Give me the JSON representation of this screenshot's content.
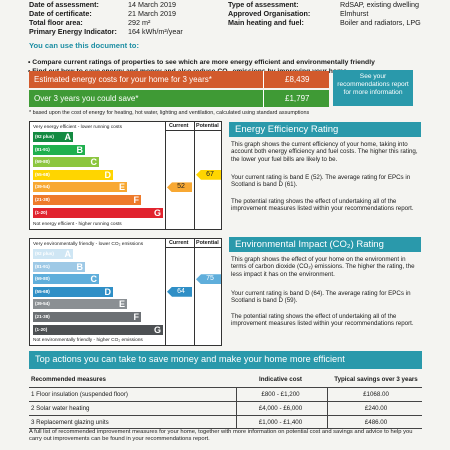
{
  "info": {
    "left": [
      {
        "label": "Date of assessment:",
        "value": "14 March 2019"
      },
      {
        "label": "Date of certificate:",
        "value": "21 March 2019"
      },
      {
        "label": "Total floor area:",
        "value": "292 m²"
      },
      {
        "label": "Primary Energy Indicator:",
        "value": "164 kWh/m²/year"
      }
    ],
    "right": [
      {
        "label": "Type of assessment:",
        "value": "RdSAP, existing dwelling"
      },
      {
        "label": "Approved Organisation:",
        "value": "Elmhurst"
      },
      {
        "label": "Main heating and fuel:",
        "value": "Boiler and radiators, LPG"
      }
    ]
  },
  "intro": {
    "heading": "You can use this document to:",
    "bullets": [
      "Compare current ratings of properties to see which are more energy efficient and environmentally friendly",
      "Find out how to save energy and money and also reduce CO₂ emissions by improving your home"
    ]
  },
  "costs": {
    "estimated_label": "Estimated energy costs for your home for 3 years*",
    "estimated_value": "£8,439",
    "save_label": "Over 3 years you could save*",
    "save_value": "£1,797",
    "see_box": "See your recommendations report for more information",
    "footnote": "* based upon the cost of energy for heating, hot water, lighting and ventilation, calculated using standard assumptions"
  },
  "ee_chart": {
    "top_label": "Very energy efficient - lower running costs",
    "bottom_label": "Not energy efficient - higher running costs",
    "col_current": "Current",
    "col_potential": "Potential",
    "bands": [
      {
        "range": "(92 plus)",
        "letter": "A",
        "color": "#138a41"
      },
      {
        "range": "(81-91)",
        "letter": "B",
        "color": "#1fb04e"
      },
      {
        "range": "(69-80)",
        "letter": "C",
        "color": "#8cc63f"
      },
      {
        "range": "(55-68)",
        "letter": "D",
        "color": "#ffd500"
      },
      {
        "range": "(39-54)",
        "letter": "E",
        "color": "#f8a832"
      },
      {
        "range": "(21-38)",
        "letter": "F",
        "color": "#ee7a2b"
      },
      {
        "range": "(1-20)",
        "letter": "G",
        "color": "#e1232e"
      }
    ],
    "current": "52",
    "potential": "67"
  },
  "ei_chart": {
    "top_label": "Very environmentally friendly - lower CO₂ emissions",
    "bottom_label": "Not environmentally friendly - higher CO₂ emissions",
    "col_current": "Current",
    "col_potential": "Potential",
    "bands": [
      {
        "range": "(92 plus)",
        "letter": "A",
        "color": "#cfe6f4"
      },
      {
        "range": "(81-91)",
        "letter": "B",
        "color": "#9ec9e6"
      },
      {
        "range": "(69-80)",
        "letter": "C",
        "color": "#5faedb"
      },
      {
        "range": "(55-68)",
        "letter": "D",
        "color": "#2f8fc6"
      },
      {
        "range": "(39-54)",
        "letter": "E",
        "color": "#8a8f93"
      },
      {
        "range": "(21-38)",
        "letter": "F",
        "color": "#6c7074"
      },
      {
        "range": "(1-20)",
        "letter": "G",
        "color": "#4d5053"
      }
    ],
    "current": "64",
    "potential": "75"
  },
  "ee_section": {
    "title": "Energy Efficiency Rating",
    "p1": "This graph shows the current efficiency of your home, taking into account both energy efficiency and fuel costs. The higher this rating, the lower your fuel bills are likely to be.",
    "p2": "Your current rating is band E (52). The average rating for EPCs in Scotland is band D (61).",
    "p3": "The potential rating shows the effect of undertaking all of the improvement measures listed within your recommendations report."
  },
  "ei_section": {
    "title": "Environmental Impact (CO₂) Rating",
    "p1": "This graph shows the effect of your home on the environment in terms of carbon dioxide (CO₂) emissions. The higher the rating, the less impact it has on the environment.",
    "p2": "Your current rating is band D (64). The average rating for EPCs in Scotland is band D (59).",
    "p3": "The potential rating shows the effect of undertaking all of the improvement measures listed within your recommendations report."
  },
  "actions": {
    "banner": "Top actions you can take to save money and make your home more efficient",
    "headers": [
      "Recommended measures",
      "Indicative cost",
      "Typical savings over 3 years"
    ],
    "rows": [
      [
        "1 Floor insulation (suspended floor)",
        "£800 - £1,200",
        "£1068.00"
      ],
      [
        "2 Solar water heating",
        "£4,000 - £6,000",
        "£240.00"
      ],
      [
        "3 Replacement glazing units",
        "£1,000 - £1,400",
        "£486.00"
      ]
    ],
    "note": "A full list of recommended improvement measures for your home, together with more information on potential cost and savings and advice to help you carry out improvements can be found in your recommendations report."
  }
}
